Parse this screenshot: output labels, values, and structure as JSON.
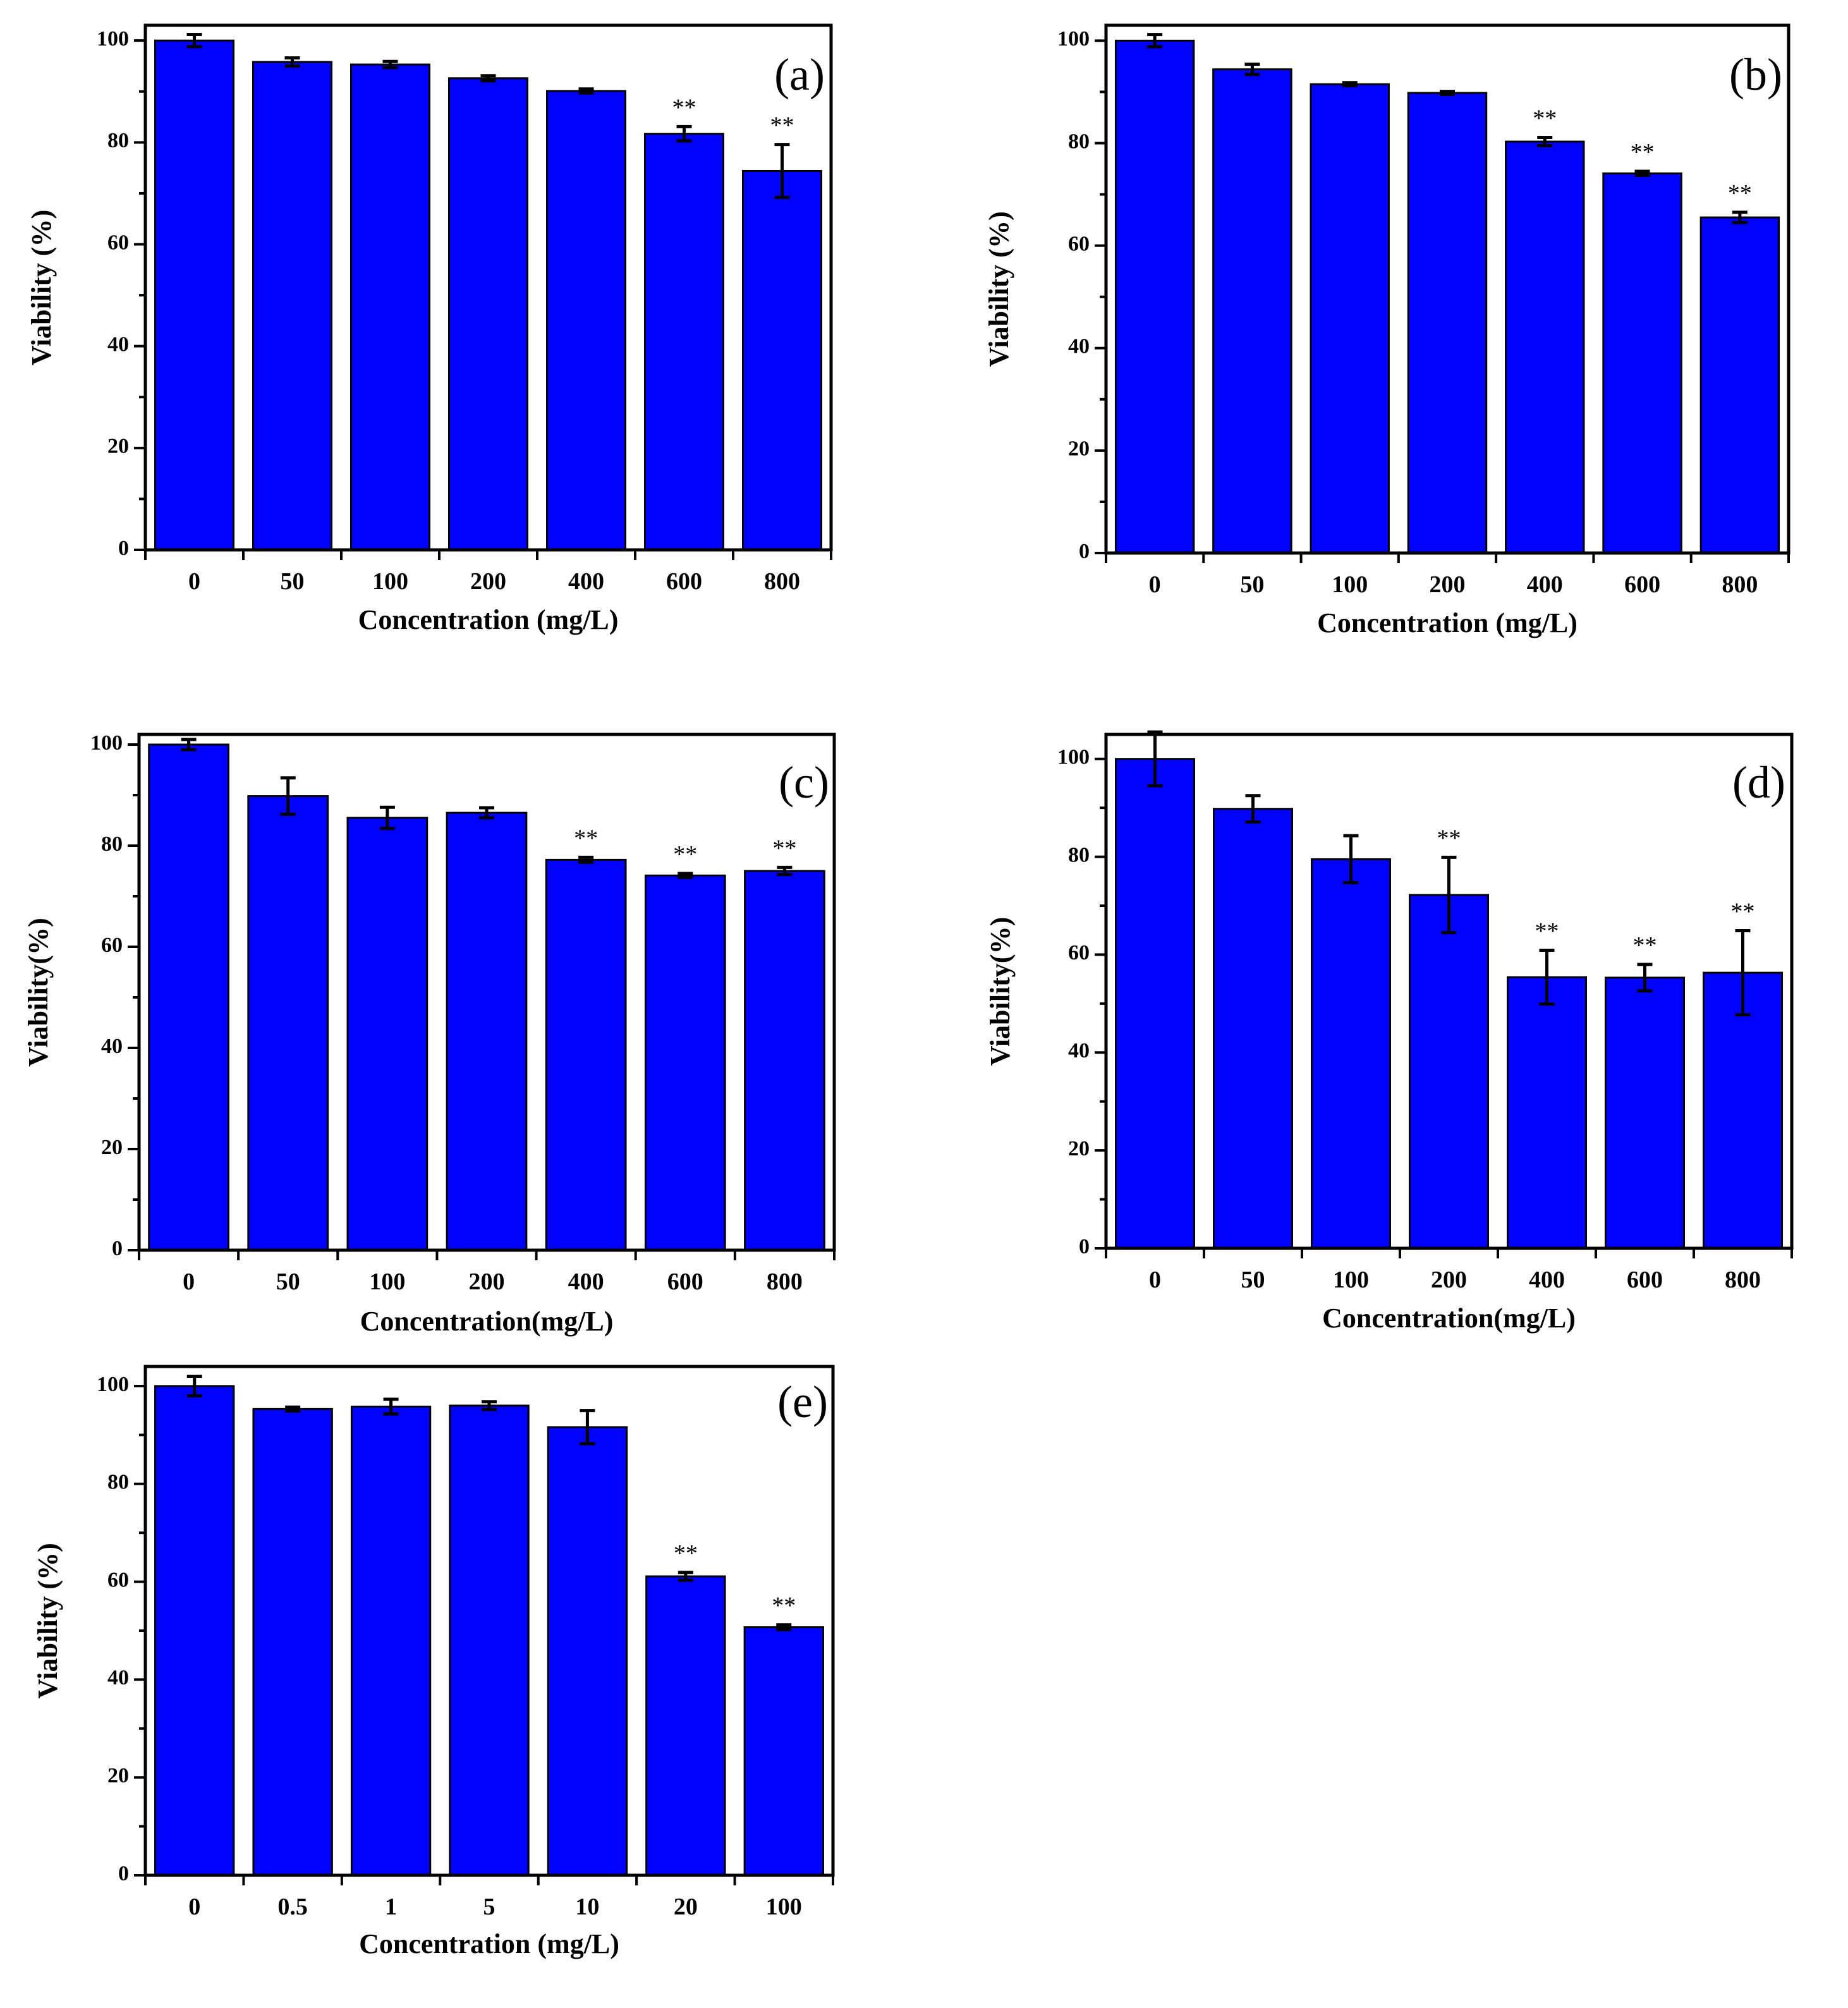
{
  "chart_data": [
    {
      "type": "bar",
      "panel_label": "(a)",
      "categories": [
        "0",
        "50",
        "100",
        "200",
        "400",
        "600",
        "800"
      ],
      "values": [
        100,
        95.8,
        95.3,
        92.6,
        90.1,
        81.7,
        74.4
      ],
      "errors": [
        1.2,
        0.8,
        0.6,
        0.5,
        0.4,
        1.4,
        5.2
      ],
      "significance": [
        "",
        "",
        "",
        "",
        "",
        "**",
        "**"
      ],
      "xlabel": "Concentration (mg/L)",
      "ylabel": "Viability (%)",
      "ylim": [
        0,
        100
      ],
      "yticks": [
        0,
        20,
        40,
        60,
        80,
        100
      ]
    },
    {
      "type": "bar",
      "panel_label": "(b)",
      "categories": [
        "0",
        "50",
        "100",
        "200",
        "400",
        "600",
        "800"
      ],
      "values": [
        100,
        94.4,
        91.5,
        89.8,
        80.3,
        74.1,
        65.5
      ],
      "errors": [
        1.2,
        1.0,
        0.3,
        0.3,
        0.8,
        0.4,
        1.0
      ],
      "significance": [
        "",
        "",
        "",
        "",
        "**",
        "**",
        "**"
      ],
      "xlabel": "Concentration (mg/L)",
      "ylabel": "Viability (%)",
      "ylim": [
        0,
        100
      ],
      "yticks": [
        0,
        20,
        40,
        60,
        80,
        100
      ]
    },
    {
      "type": "bar",
      "panel_label": "(c)",
      "categories": [
        "0",
        "50",
        "100",
        "200",
        "400",
        "600",
        "800"
      ],
      "values": [
        100,
        89.8,
        85.5,
        86.5,
        77.2,
        74.1,
        75.0
      ],
      "errors": [
        1.0,
        3.6,
        2.1,
        1.0,
        0.5,
        0.4,
        0.7
      ],
      "significance": [
        "",
        "",
        "",
        "",
        "**",
        "**",
        "**"
      ],
      "xlabel": "Concentration(mg/L)",
      "ylabel": "Viability(%)",
      "ylim": [
        0,
        100
      ],
      "yticks": [
        0,
        20,
        40,
        60,
        80,
        100
      ]
    },
    {
      "type": "bar",
      "panel_label": "(d)",
      "categories": [
        "0",
        "50",
        "100",
        "200",
        "400",
        "600",
        "800"
      ],
      "values": [
        100,
        89.8,
        79.5,
        72.2,
        55.4,
        55.3,
        56.3
      ],
      "errors": [
        5.5,
        2.7,
        4.8,
        7.7,
        5.5,
        2.7,
        8.6
      ],
      "significance": [
        "",
        "",
        "",
        "**",
        "**",
        "**",
        "**"
      ],
      "xlabel": "Concentration(mg/L)",
      "ylabel": "Viability(%)",
      "ylim": [
        0,
        100
      ],
      "yticks": [
        0,
        20,
        40,
        60,
        80,
        100
      ]
    },
    {
      "type": "bar",
      "panel_label": "(e)",
      "categories": [
        "0",
        "0.5",
        "1",
        "5",
        "10",
        "20",
        "100"
      ],
      "values": [
        100,
        95.3,
        95.8,
        96.0,
        91.6,
        61.1,
        50.7
      ],
      "errors": [
        2.0,
        0.4,
        1.5,
        0.8,
        3.4,
        0.8,
        0.5
      ],
      "significance": [
        "",
        "",
        "",
        "",
        "",
        "**",
        "**"
      ],
      "xlabel": "Concentration (mg/L)",
      "ylabel": "Viability (%)",
      "ylim": [
        0,
        100
      ],
      "yticks": [
        0,
        20,
        40,
        60,
        80,
        100
      ]
    }
  ]
}
